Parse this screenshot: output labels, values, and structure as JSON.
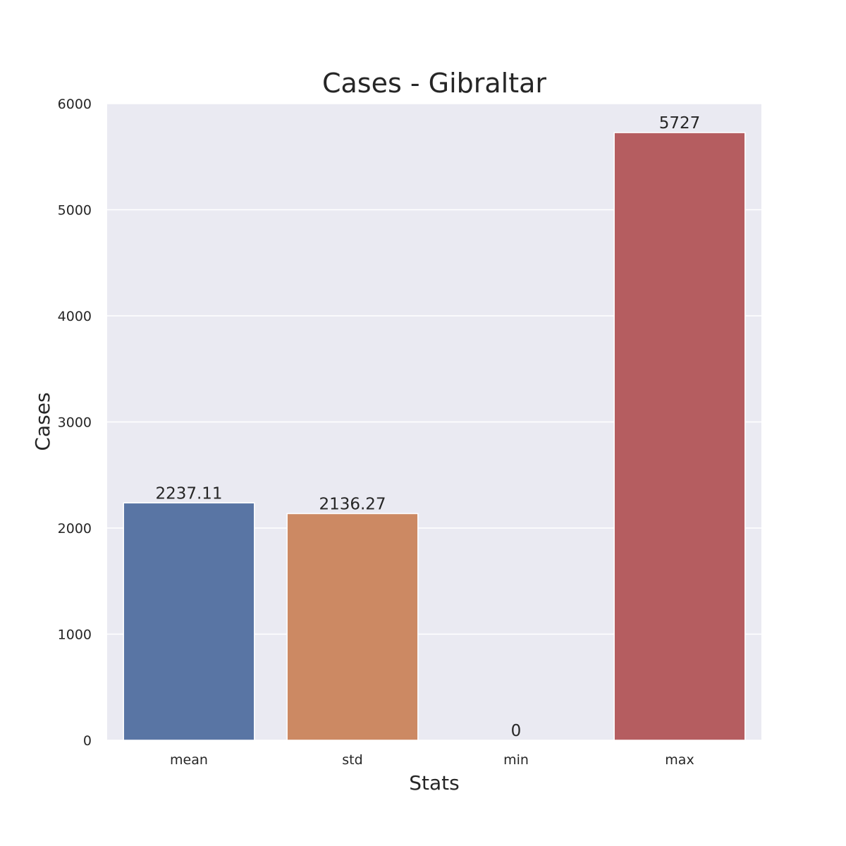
{
  "chart_data": {
    "type": "bar",
    "title": "Cases - Gibraltar",
    "xlabel": "Stats",
    "ylabel": "Cases",
    "categories": [
      "mean",
      "std",
      "min",
      "max"
    ],
    "values": [
      2237.11,
      2136.27,
      0,
      5727
    ],
    "data_labels": [
      "2237.11",
      "2136.27",
      "0",
      "5727"
    ],
    "colors": [
      "#5975a4",
      "#cc8963",
      "#5f9e6e",
      "#b55d60"
    ],
    "ylim": [
      0,
      6000
    ],
    "yticks": [
      0,
      1000,
      2000,
      3000,
      4000,
      5000,
      6000
    ],
    "ytick_labels": [
      "0",
      "1000",
      "2000",
      "3000",
      "4000",
      "5000",
      "6000"
    ],
    "grid": true,
    "plot_background": "#eaeaf2",
    "grid_color": "#ffffff"
  }
}
